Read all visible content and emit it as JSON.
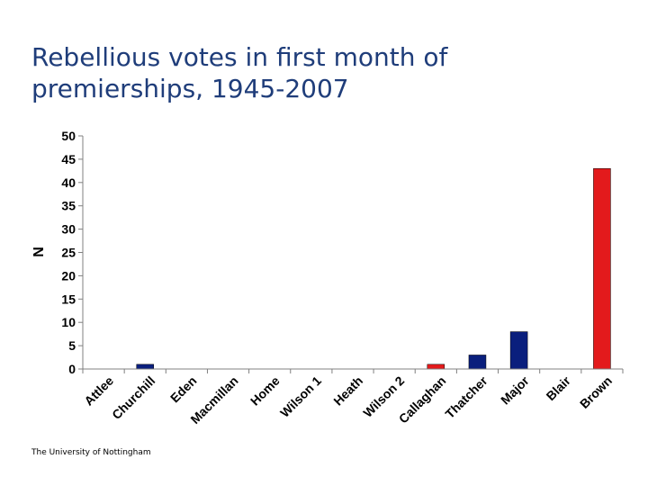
{
  "slide": {
    "title": "Rebellious votes in first month of premierships, 1945-2007",
    "footer": "The University of Nottingham"
  },
  "colors": {
    "title": "#1f3d7a",
    "conservative": "#0a1f7d",
    "labour": "#e31a1c",
    "axis": "#808080"
  },
  "chart_data": {
    "type": "bar",
    "title": "Rebellious votes in first month of premierships, 1945-2007",
    "xlabel": "",
    "ylabel": "N",
    "ylim": [
      0,
      50
    ],
    "yticks": [
      0,
      5,
      10,
      15,
      20,
      25,
      30,
      35,
      40,
      45,
      50
    ],
    "grid": false,
    "categories": [
      "Attlee",
      "Churchill",
      "Eden",
      "Macmillan",
      "Home",
      "Wilson 1",
      "Heath",
      "Wilson 2",
      "Callaghan",
      "Thatcher",
      "Major",
      "Blair",
      "Brown"
    ],
    "values": [
      0,
      1,
      0,
      0,
      0,
      0,
      0,
      0,
      1,
      3,
      8,
      0,
      43
    ],
    "party": [
      "labour",
      "conservative",
      "conservative",
      "conservative",
      "conservative",
      "labour",
      "conservative",
      "labour",
      "labour",
      "conservative",
      "conservative",
      "labour",
      "labour"
    ]
  }
}
